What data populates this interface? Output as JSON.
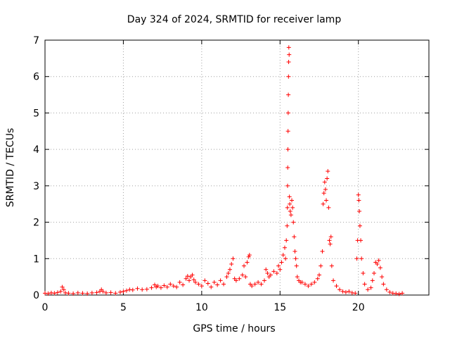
{
  "chart_data": {
    "type": "scatter",
    "title": "Day 324 of 2024, SRMTID for receiver lamp",
    "xlabel": "GPS time / hours",
    "ylabel": "SRMTID / TECUs",
    "xlim": [
      0,
      24.5
    ],
    "ylim": [
      0,
      7
    ],
    "xticks": [
      0,
      5,
      10,
      15,
      20
    ],
    "yticks": [
      0,
      1,
      2,
      3,
      4,
      5,
      6,
      7
    ],
    "grid": true,
    "marker": "+",
    "series_color": "#ff0000",
    "series": [
      {
        "name": "SRMTID",
        "x": [
          0.0,
          0.2,
          0.4,
          0.6,
          0.8,
          1.0,
          1.1,
          1.2,
          1.3,
          1.5,
          1.8,
          2.1,
          2.4,
          2.7,
          3.0,
          3.3,
          3.5,
          3.6,
          3.7,
          3.9,
          4.2,
          4.5,
          4.8,
          5.0,
          5.2,
          5.4,
          5.6,
          5.9,
          6.2,
          6.5,
          6.8,
          7.0,
          7.1,
          7.2,
          7.4,
          7.6,
          7.8,
          8.0,
          8.2,
          8.4,
          8.6,
          8.8,
          9.0,
          9.1,
          9.2,
          9.3,
          9.4,
          9.5,
          9.6,
          9.8,
          10.0,
          10.2,
          10.4,
          10.6,
          10.8,
          11.0,
          11.2,
          11.4,
          11.6,
          11.7,
          11.8,
          11.9,
          12.0,
          12.1,
          12.2,
          12.4,
          12.6,
          12.7,
          12.8,
          12.9,
          13.0,
          13.05,
          13.1,
          13.2,
          13.4,
          13.6,
          13.8,
          14.0,
          14.1,
          14.2,
          14.3,
          14.4,
          14.6,
          14.8,
          14.9,
          15.0,
          15.1,
          15.2,
          15.3,
          15.35,
          15.4,
          15.45,
          15.47,
          15.48,
          15.49,
          15.5,
          15.51,
          15.52,
          15.53,
          15.54,
          15.55,
          15.56,
          15.58,
          15.6,
          15.62,
          15.65,
          15.7,
          15.75,
          15.8,
          15.85,
          15.9,
          15.95,
          16.0,
          16.05,
          16.1,
          16.2,
          16.3,
          16.4,
          16.6,
          16.8,
          17.0,
          17.2,
          17.4,
          17.5,
          17.6,
          17.7,
          17.75,
          17.8,
          17.85,
          17.9,
          17.95,
          18.0,
          18.05,
          18.1,
          18.15,
          18.2,
          18.25,
          18.3,
          18.4,
          18.6,
          18.8,
          19.0,
          19.2,
          19.4,
          19.6,
          19.8,
          19.9,
          19.95,
          20.0,
          20.03,
          20.06,
          20.1,
          20.15,
          20.2,
          20.3,
          20.4,
          20.6,
          20.8,
          20.9,
          21.0,
          21.1,
          21.2,
          21.3,
          21.4,
          21.5,
          21.6,
          21.8,
          22.0,
          22.2,
          22.4,
          22.6,
          22.8
        ],
        "y": [
          0.05,
          0.04,
          0.06,
          0.05,
          0.07,
          0.1,
          0.22,
          0.15,
          0.06,
          0.05,
          0.04,
          0.06,
          0.05,
          0.04,
          0.06,
          0.07,
          0.1,
          0.15,
          0.1,
          0.06,
          0.07,
          0.05,
          0.08,
          0.1,
          0.12,
          0.15,
          0.14,
          0.18,
          0.15,
          0.16,
          0.2,
          0.28,
          0.22,
          0.25,
          0.2,
          0.26,
          0.22,
          0.3,
          0.25,
          0.22,
          0.35,
          0.28,
          0.45,
          0.52,
          0.4,
          0.5,
          0.55,
          0.42,
          0.35,
          0.3,
          0.25,
          0.4,
          0.32,
          0.22,
          0.35,
          0.28,
          0.4,
          0.3,
          0.5,
          0.6,
          0.7,
          0.85,
          1.0,
          0.45,
          0.4,
          0.45,
          0.55,
          0.8,
          0.5,
          0.9,
          1.05,
          1.1,
          0.3,
          0.25,
          0.3,
          0.35,
          0.3,
          0.4,
          0.7,
          0.6,
          0.5,
          0.55,
          0.65,
          0.6,
          0.8,
          0.7,
          0.9,
          1.1,
          1.3,
          1.0,
          1.5,
          1.9,
          2.4,
          3.0,
          3.5,
          4.0,
          4.5,
          5.0,
          5.5,
          6.0,
          6.4,
          6.8,
          6.6,
          2.7,
          2.5,
          2.3,
          2.2,
          2.6,
          2.4,
          2.0,
          1.6,
          1.2,
          1.0,
          0.8,
          0.5,
          0.4,
          0.35,
          0.35,
          0.3,
          0.25,
          0.3,
          0.35,
          0.45,
          0.55,
          0.8,
          1.2,
          2.5,
          2.8,
          3.1,
          2.9,
          2.6,
          3.2,
          3.4,
          2.4,
          1.5,
          1.4,
          1.6,
          0.8,
          0.4,
          0.25,
          0.15,
          0.1,
          0.08,
          0.1,
          0.06,
          0.05,
          1.0,
          1.5,
          2.75,
          2.6,
          2.3,
          1.9,
          1.5,
          1.0,
          0.6,
          0.3,
          0.15,
          0.2,
          0.4,
          0.6,
          0.9,
          0.85,
          0.95,
          0.75,
          0.5,
          0.3,
          0.15,
          0.08,
          0.05,
          0.04,
          0.03,
          0.05
        ]
      }
    ]
  }
}
